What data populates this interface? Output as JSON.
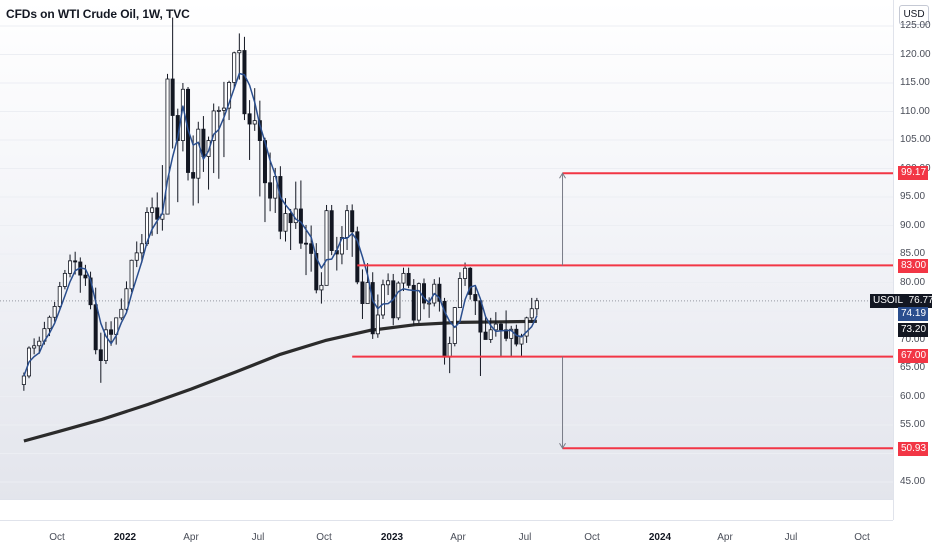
{
  "title": "CFDs on WTI Crude Oil, 1W, TVC",
  "currency": "USD",
  "y_ticks": [
    "125.00",
    "120.00",
    "115.00",
    "110.00",
    "105.00",
    "100.00",
    "95.00",
    "90.00",
    "85.00",
    "80.00",
    "75.00",
    "70.00",
    "65.00",
    "60.00",
    "55.00",
    "50.00",
    "45.00"
  ],
  "x_ticks": [
    {
      "label": "Oct",
      "bold": false
    },
    {
      "label": "2022",
      "bold": true
    },
    {
      "label": "Apr",
      "bold": false
    },
    {
      "label": "Jul",
      "bold": false
    },
    {
      "label": "Oct",
      "bold": false
    },
    {
      "label": "2023",
      "bold": true
    },
    {
      "label": "Apr",
      "bold": false
    },
    {
      "label": "Jul",
      "bold": false
    },
    {
      "label": "Oct",
      "bold": false
    },
    {
      "label": "2024",
      "bold": true
    },
    {
      "label": "Apr",
      "bold": false
    },
    {
      "label": "Jul",
      "bold": false
    },
    {
      "label": "Oct",
      "bold": false
    }
  ],
  "price_tags": {
    "target_high": "99.17",
    "resistance": "83.00",
    "symbol": "USOIL",
    "last_price": "76.77",
    "ma_fast": "74.19",
    "ma_slow": "73.20",
    "support": "67.00",
    "target_low": "50.93"
  },
  "colors": {
    "candle": "#131722",
    "ma_fast": "#2a4e8e",
    "ma_slow": "#2b2b2b",
    "level": "#f23645",
    "projection": "#787b86"
  },
  "chart_data": {
    "type": "candlestick",
    "symbol": "USOIL",
    "timeframe": "1W",
    "y_unit": "USD",
    "ylim": [
      43,
      126
    ],
    "xlim": [
      "2021-08-15",
      "2024-11-15"
    ],
    "candles": [
      [
        "2021-08-16",
        62.1,
        64.2,
        61.0,
        63.6
      ],
      [
        "2021-08-23",
        63.6,
        68.8,
        63.2,
        68.5
      ],
      [
        "2021-08-30",
        68.5,
        70.2,
        67.4,
        68.9
      ],
      [
        "2021-09-06",
        68.9,
        70.5,
        67.5,
        69.7
      ],
      [
        "2021-09-13",
        69.7,
        73.1,
        69.1,
        71.9
      ],
      [
        "2021-09-20",
        71.9,
        74.2,
        70.6,
        73.9
      ],
      [
        "2021-09-27",
        73.9,
        76.6,
        73.1,
        75.8
      ],
      [
        "2021-10-04",
        75.8,
        80.1,
        75.4,
        79.3
      ],
      [
        "2021-10-11",
        79.3,
        82.2,
        78.8,
        81.6
      ],
      [
        "2021-10-18",
        81.6,
        84.9,
        80.9,
        83.8
      ],
      [
        "2021-10-25",
        83.8,
        85.4,
        81.4,
        83.6
      ],
      [
        "2021-11-01",
        83.6,
        84.4,
        78.2,
        81.3
      ],
      [
        "2021-11-08",
        81.3,
        83.1,
        79.4,
        80.8
      ],
      [
        "2021-11-15",
        80.8,
        81.9,
        75.3,
        76.1
      ],
      [
        "2021-11-22",
        76.1,
        79.1,
        67.4,
        68.2
      ],
      [
        "2021-11-29",
        68.2,
        71.2,
        62.4,
        66.3
      ],
      [
        "2021-12-06",
        66.3,
        73.1,
        65.7,
        71.7
      ],
      [
        "2021-12-13",
        71.7,
        73.2,
        68.9,
        70.9
      ],
      [
        "2021-12-20",
        70.9,
        73.8,
        69.1,
        73.8
      ],
      [
        "2021-12-27",
        73.8,
        77.2,
        73.4,
        75.3
      ],
      [
        "2022-01-03",
        75.3,
        80.2,
        74.9,
        78.9
      ],
      [
        "2022-01-10",
        78.9,
        84.0,
        78.3,
        83.9
      ],
      [
        "2022-01-17",
        83.9,
        87.2,
        82.7,
        85.2
      ],
      [
        "2022-01-24",
        85.2,
        88.5,
        83.5,
        86.8
      ],
      [
        "2022-01-31",
        86.8,
        93.2,
        86.4,
        92.3
      ],
      [
        "2022-02-07",
        92.3,
        94.9,
        88.2,
        93.1
      ],
      [
        "2022-02-14",
        93.1,
        95.8,
        88.5,
        91.1
      ],
      [
        "2022-02-21",
        91.1,
        100.6,
        89.1,
        92.0
      ],
      [
        "2022-02-28",
        92.0,
        116.6,
        92.0,
        115.7
      ],
      [
        "2022-03-07",
        115.7,
        126.5,
        103.5,
        109.3
      ],
      [
        "2022-03-14",
        109.3,
        110.5,
        94.1,
        104.9
      ],
      [
        "2022-03-21",
        104.9,
        115.0,
        103.0,
        113.9
      ],
      [
        "2022-03-28",
        113.9,
        114.3,
        97.9,
        99.3
      ],
      [
        "2022-04-04",
        99.3,
        105.8,
        93.5,
        98.3
      ],
      [
        "2022-04-11",
        98.3,
        108.2,
        93.9,
        106.9
      ],
      [
        "2022-04-18",
        106.9,
        109.2,
        99.4,
        102.1
      ],
      [
        "2022-04-25",
        102.1,
        105.6,
        96.3,
        104.9
      ],
      [
        "2022-05-02",
        104.9,
        111.4,
        99.2,
        110.1
      ],
      [
        "2022-05-09",
        110.1,
        110.9,
        98.2,
        110.2
      ],
      [
        "2022-05-16",
        110.2,
        115.2,
        102.0,
        110.6
      ],
      [
        "2022-05-23",
        110.6,
        115.4,
        108.5,
        115.1
      ],
      [
        "2022-05-30",
        115.1,
        120.5,
        114.1,
        120.3
      ],
      [
        "2022-06-06",
        120.3,
        123.7,
        115.6,
        120.7
      ],
      [
        "2022-06-13",
        120.7,
        123.1,
        108.5,
        109.6
      ],
      [
        "2022-06-20",
        109.6,
        112.0,
        101.5,
        107.8
      ],
      [
        "2022-06-27",
        107.8,
        114.1,
        106.6,
        108.4
      ],
      [
        "2022-07-04",
        108.4,
        111.9,
        95.1,
        104.9
      ],
      [
        "2022-07-11",
        104.9,
        105.4,
        90.6,
        97.5
      ],
      [
        "2022-07-18",
        97.5,
        102.8,
        92.5,
        94.8
      ],
      [
        "2022-07-25",
        94.8,
        100.1,
        92.2,
        98.6
      ],
      [
        "2022-08-01",
        98.6,
        100.4,
        87.6,
        89.0
      ],
      [
        "2022-08-08",
        89.0,
        94.8,
        87.2,
        92.1
      ],
      [
        "2022-08-15",
        92.1,
        92.9,
        85.7,
        90.5
      ],
      [
        "2022-08-22",
        90.5,
        97.7,
        89.4,
        92.9
      ],
      [
        "2022-08-29",
        92.9,
        97.9,
        85.9,
        86.9
      ],
      [
        "2022-09-05",
        86.9,
        90.1,
        81.3,
        86.8
      ],
      [
        "2022-09-12",
        86.8,
        90.0,
        81.9,
        85.1
      ],
      [
        "2022-09-19",
        85.1,
        86.9,
        78.1,
        78.7
      ],
      [
        "2022-09-26",
        78.7,
        81.8,
        76.3,
        79.5
      ],
      [
        "2022-10-03",
        79.5,
        93.6,
        79.5,
        92.6
      ],
      [
        "2022-10-10",
        92.6,
        93.6,
        84.8,
        85.6
      ],
      [
        "2022-10-17",
        85.6,
        88.0,
        82.1,
        85.0
      ],
      [
        "2022-10-24",
        85.0,
        89.9,
        83.2,
        87.9
      ],
      [
        "2022-10-31",
        87.9,
        93.6,
        85.7,
        92.6
      ],
      [
        "2022-11-07",
        92.6,
        93.7,
        84.5,
        88.9
      ],
      [
        "2022-11-14",
        88.9,
        89.8,
        79.7,
        80.1
      ],
      [
        "2022-11-21",
        80.1,
        82.3,
        73.6,
        76.3
      ],
      [
        "2022-11-28",
        76.3,
        83.4,
        76.3,
        80.0
      ],
      [
        "2022-12-05",
        80.0,
        81.8,
        70.1,
        71.0
      ],
      [
        "2022-12-12",
        71.0,
        77.9,
        70.3,
        74.3
      ],
      [
        "2022-12-19",
        74.3,
        80.5,
        73.6,
        79.6
      ],
      [
        "2022-12-26",
        79.6,
        81.6,
        77.8,
        80.3
      ],
      [
        "2023-01-02",
        80.3,
        81.5,
        72.5,
        73.8
      ],
      [
        "2023-01-09",
        73.8,
        80.2,
        73.4,
        79.9
      ],
      [
        "2023-01-16",
        79.9,
        82.6,
        78.5,
        81.6
      ],
      [
        "2023-01-23",
        81.6,
        82.6,
        79.0,
        79.5
      ],
      [
        "2023-01-30",
        79.5,
        80.6,
        72.5,
        73.4
      ],
      [
        "2023-02-06",
        73.4,
        80.0,
        72.9,
        79.8
      ],
      [
        "2023-02-13",
        79.8,
        80.7,
        75.3,
        76.4
      ],
      [
        "2023-02-20",
        76.4,
        77.4,
        73.8,
        76.4
      ],
      [
        "2023-02-27",
        76.4,
        80.6,
        75.8,
        79.7
      ],
      [
        "2023-03-06",
        79.7,
        80.9,
        74.9,
        76.7
      ],
      [
        "2023-03-13",
        76.7,
        77.3,
        65.6,
        66.9
      ],
      [
        "2023-03-20",
        66.9,
        70.5,
        64.1,
        69.3
      ],
      [
        "2023-03-27",
        69.3,
        75.7,
        68.8,
        75.6
      ],
      [
        "2023-04-03",
        75.6,
        81.8,
        75.6,
        80.7
      ],
      [
        "2023-04-10",
        80.7,
        83.5,
        79.4,
        82.5
      ],
      [
        "2023-04-17",
        82.5,
        82.7,
        77.0,
        77.9
      ],
      [
        "2023-04-24",
        77.9,
        79.2,
        74.3,
        76.8
      ],
      [
        "2023-05-01",
        76.8,
        76.9,
        63.6,
        71.3
      ],
      [
        "2023-05-08",
        71.3,
        73.9,
        70.0,
        70.0
      ],
      [
        "2023-05-15",
        70.0,
        73.8,
        69.4,
        71.7
      ],
      [
        "2023-05-22",
        71.7,
        74.8,
        70.5,
        72.7
      ],
      [
        "2023-05-29",
        72.7,
        73.0,
        67.0,
        71.7
      ],
      [
        "2023-06-05",
        71.7,
        75.1,
        69.7,
        70.2
      ],
      [
        "2023-06-12",
        70.2,
        72.4,
        67.0,
        71.8
      ],
      [
        "2023-06-19",
        71.8,
        72.6,
        68.8,
        69.2
      ],
      [
        "2023-06-26",
        69.2,
        71.0,
        67.1,
        70.6
      ],
      [
        "2023-07-03",
        70.6,
        74.0,
        69.4,
        73.8
      ],
      [
        "2023-07-10",
        73.8,
        77.3,
        72.9,
        75.4
      ],
      [
        "2023-07-17",
        75.4,
        77.3,
        74.2,
        76.8
      ]
    ],
    "ma_fast": {
      "name": "",
      "value_last": 74.19
    },
    "ma_slow": {
      "name": "",
      "value_last": 73.2
    },
    "ma_slow_points": [
      [
        "2021-08-16",
        52.2
      ],
      [
        "2021-10-01",
        53.8
      ],
      [
        "2021-12-01",
        56.0
      ],
      [
        "2022-02-01",
        58.6
      ],
      [
        "2022-04-01",
        61.3
      ],
      [
        "2022-06-01",
        64.3
      ],
      [
        "2022-08-01",
        67.4
      ],
      [
        "2022-10-01",
        69.8
      ],
      [
        "2022-12-01",
        71.6
      ],
      [
        "2023-02-01",
        72.6
      ],
      [
        "2023-04-01",
        73.0
      ],
      [
        "2023-06-01",
        73.1
      ],
      [
        "2023-07-17",
        73.2
      ]
    ],
    "horizontal_levels": [
      {
        "price": 83.0,
        "from": "2022-11-14",
        "to": "2024-11-15"
      },
      {
        "price": 67.0,
        "from": "2022-11-07",
        "to": "2024-11-15"
      },
      {
        "price": 99.17,
        "from": "2023-08-21",
        "to": "2024-11-15"
      },
      {
        "price": 50.93,
        "from": "2023-08-21",
        "to": "2024-11-15"
      }
    ],
    "projections": [
      {
        "from": 83.0,
        "to": 99.17,
        "date": "2023-08-21"
      },
      {
        "from": 67.0,
        "to": 50.93,
        "date": "2023-08-21"
      }
    ],
    "last_price": 76.77
  }
}
